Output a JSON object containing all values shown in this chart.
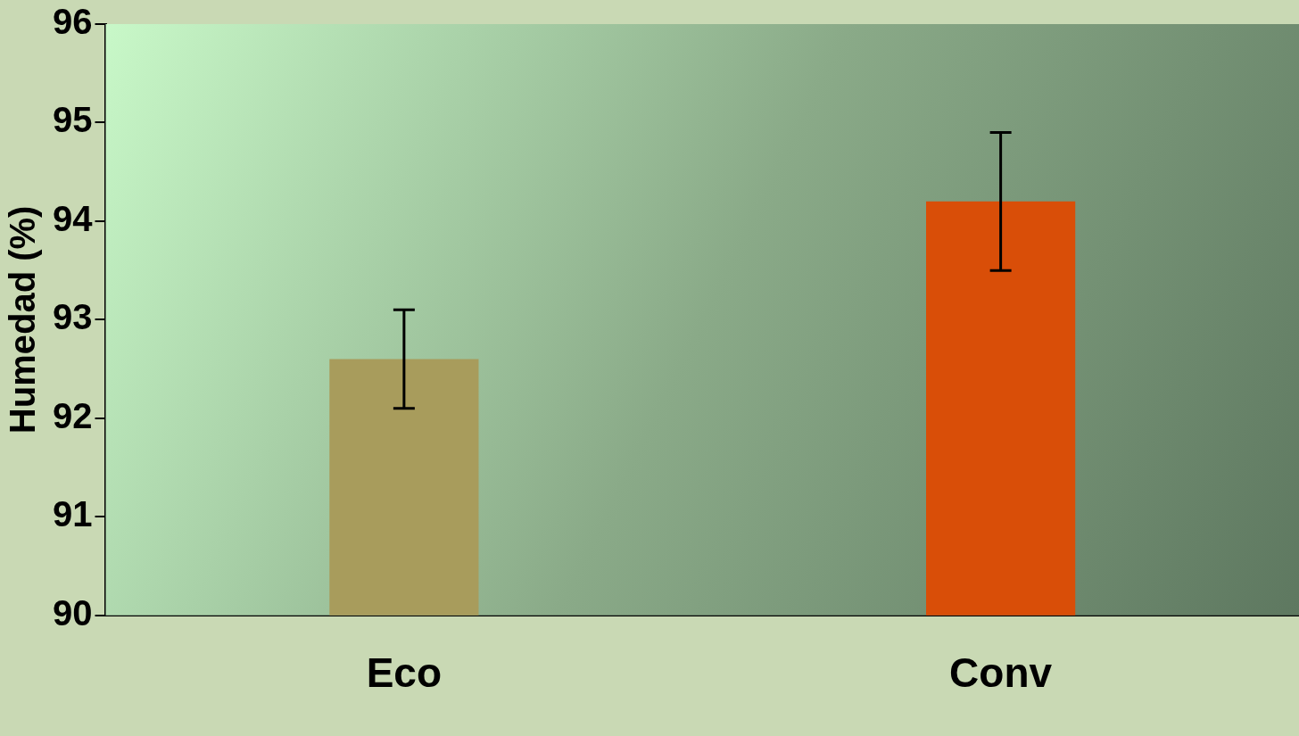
{
  "chart_data": {
    "type": "bar",
    "ylabel": "Humedad (%)",
    "categories": [
      "Eco",
      "Conv"
    ],
    "values": [
      92.6,
      94.2
    ],
    "colors": [
      "#a89c5c",
      "#d94e08"
    ],
    "errors": [
      [
        92.1,
        93.1
      ],
      [
        93.5,
        94.9
      ]
    ],
    "ylim": [
      90,
      96
    ],
    "yticks": [
      90,
      91,
      92,
      93,
      94,
      95,
      96
    ],
    "grid": false,
    "legend": false
  }
}
